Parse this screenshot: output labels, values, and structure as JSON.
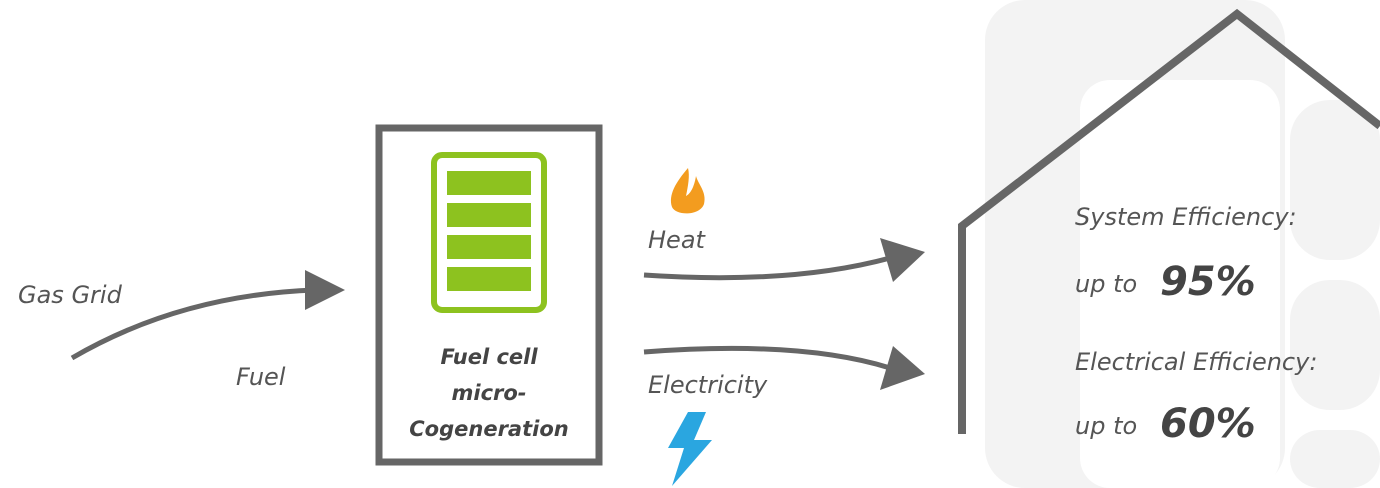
{
  "nodes": {
    "gas_grid": "Gas Grid",
    "fuel": "Fuel",
    "unit": [
      "Fuel cell",
      "micro-",
      "Cogeneration"
    ],
    "heat": "Heat",
    "electricity": "Electricity",
    "system": {
      "label": "System Efficiency:",
      "prefix": "up to",
      "value": "95%"
    },
    "electrical": {
      "label": "Electrical Efficiency:",
      "prefix": "up to",
      "value": "60%"
    }
  }
}
